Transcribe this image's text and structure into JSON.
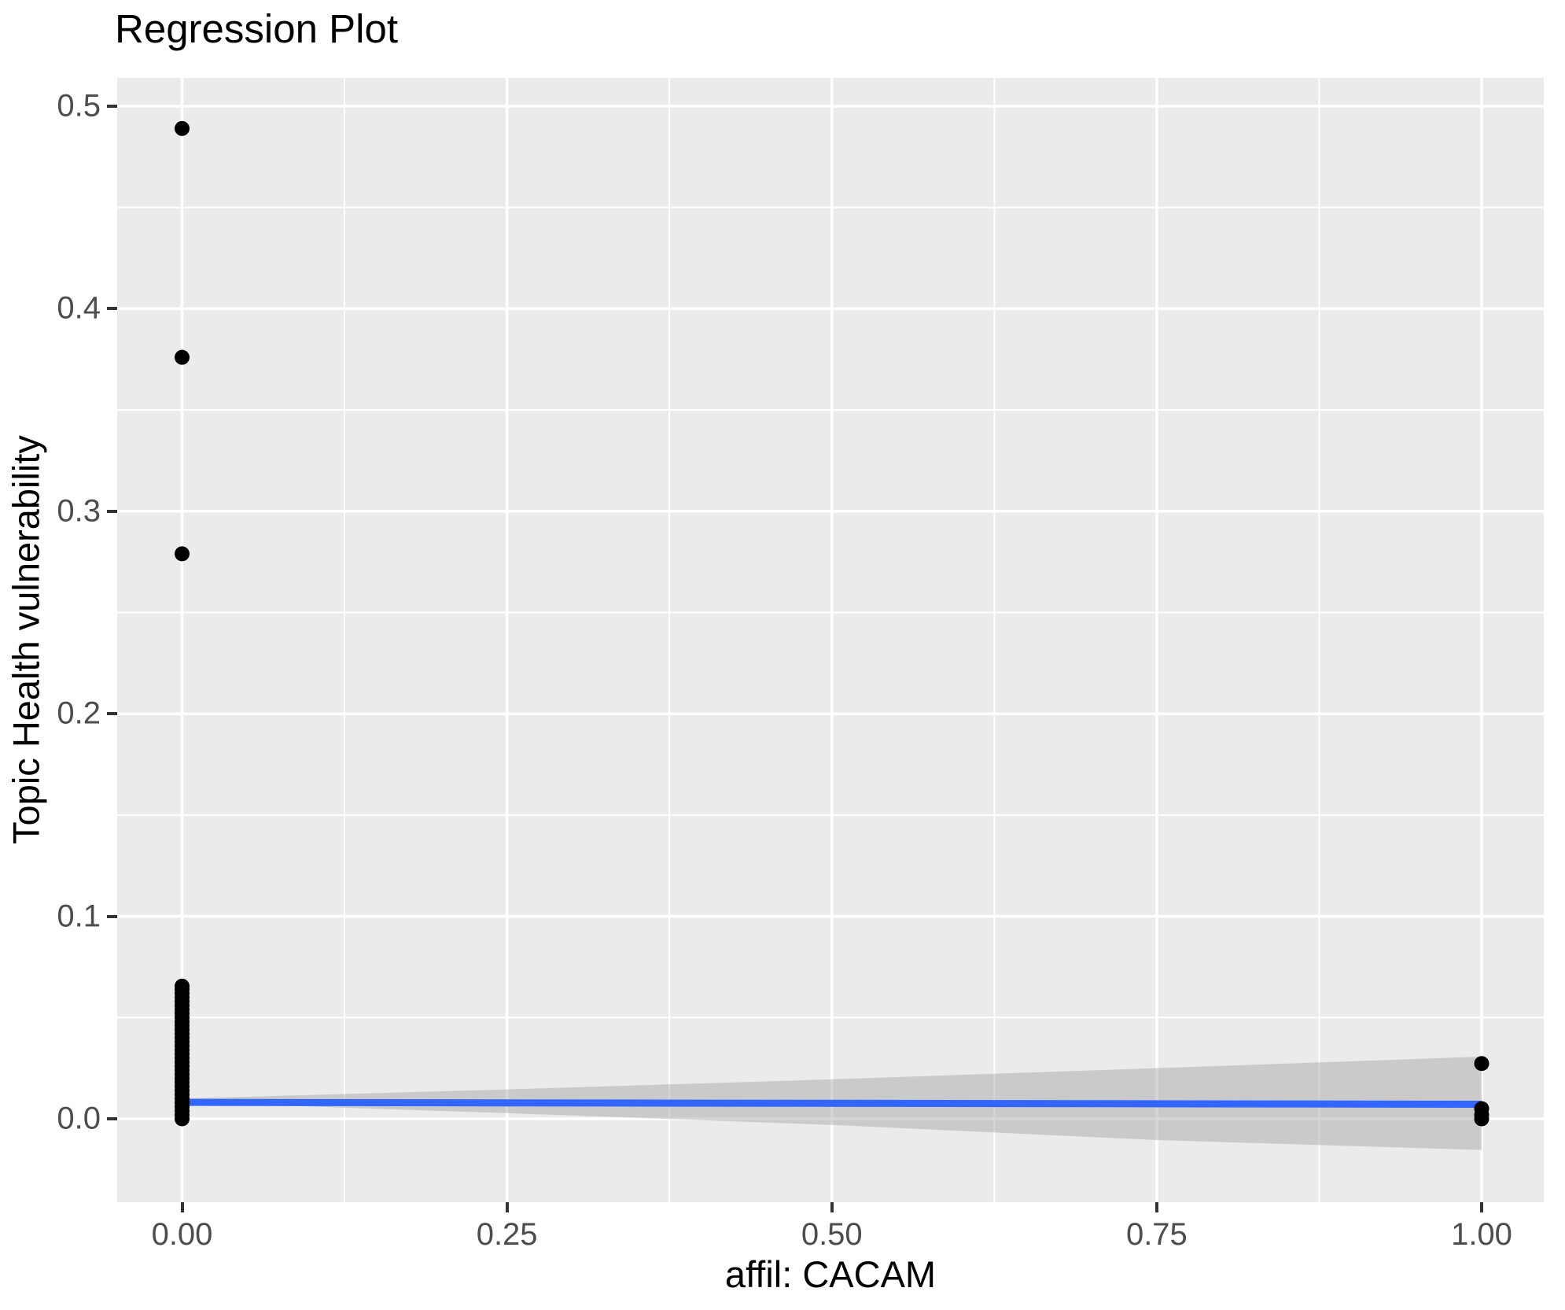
{
  "chart_data": {
    "type": "scatter",
    "title": "Regression Plot",
    "xlabel": "affil: CACAM",
    "ylabel": "Topic Health vulnerability",
    "xlim": [
      -0.05,
      1.05
    ],
    "ylim": [
      -0.042,
      0.514
    ],
    "grid": "white major and minor gridlines on grey panel",
    "legend": "none",
    "x_ticks": {
      "values": [
        0,
        0.25,
        0.5,
        0.75,
        1.0
      ],
      "labels": [
        "0.00",
        "0.25",
        "0.50",
        "0.75",
        "1.00"
      ]
    },
    "y_ticks": {
      "values": [
        0,
        0.1,
        0.2,
        0.3,
        0.4,
        0.5
      ],
      "labels": [
        "0.0",
        "0.1",
        "0.2",
        "0.3",
        "0.4",
        "0.5"
      ]
    },
    "x_minor": [
      0.125,
      0.375,
      0.625,
      0.875
    ],
    "y_minor": [
      0.05,
      0.15,
      0.25,
      0.35,
      0.45
    ],
    "points": {
      "x0_cluster_y": [
        0,
        0.002,
        0.004,
        0.006,
        0.008,
        0.01,
        0.012,
        0.014,
        0.016,
        0.018,
        0.02,
        0.022,
        0.024,
        0.026,
        0.028,
        0.03,
        0.032,
        0.034,
        0.036,
        0.038,
        0.04,
        0.042,
        0.044,
        0.046,
        0.048,
        0.05,
        0.052,
        0.054,
        0.056,
        0.058,
        0.06,
        0.062,
        0.064,
        0.0655
      ],
      "x0_outliers_y": [
        0.279,
        0.376,
        0.489
      ],
      "x1_y": [
        0.0,
        0.002,
        0.005,
        0.0273
      ]
    },
    "regression_line": {
      "x": [
        0,
        1
      ],
      "y": [
        0.0081,
        0.0072
      ]
    },
    "ci_band": {
      "x": [
        0,
        0.25,
        0.5,
        0.75,
        1.0
      ],
      "upper": [
        0.01,
        0.0145,
        0.0195,
        0.025,
        0.0307
      ],
      "lower": [
        0.0082,
        0.0028,
        -0.003,
        -0.0105,
        -0.0154
      ]
    },
    "colors": {
      "background": "#FFFFFF",
      "panel": "#EBEBEB",
      "gridline": "#FFFFFF",
      "point": "#000000",
      "line": "#3366FF",
      "band": "#999999",
      "band_alpha": 0.4,
      "tick_label": "#4D4D4D",
      "tick_mark": "#333333",
      "text": "#000000"
    }
  }
}
